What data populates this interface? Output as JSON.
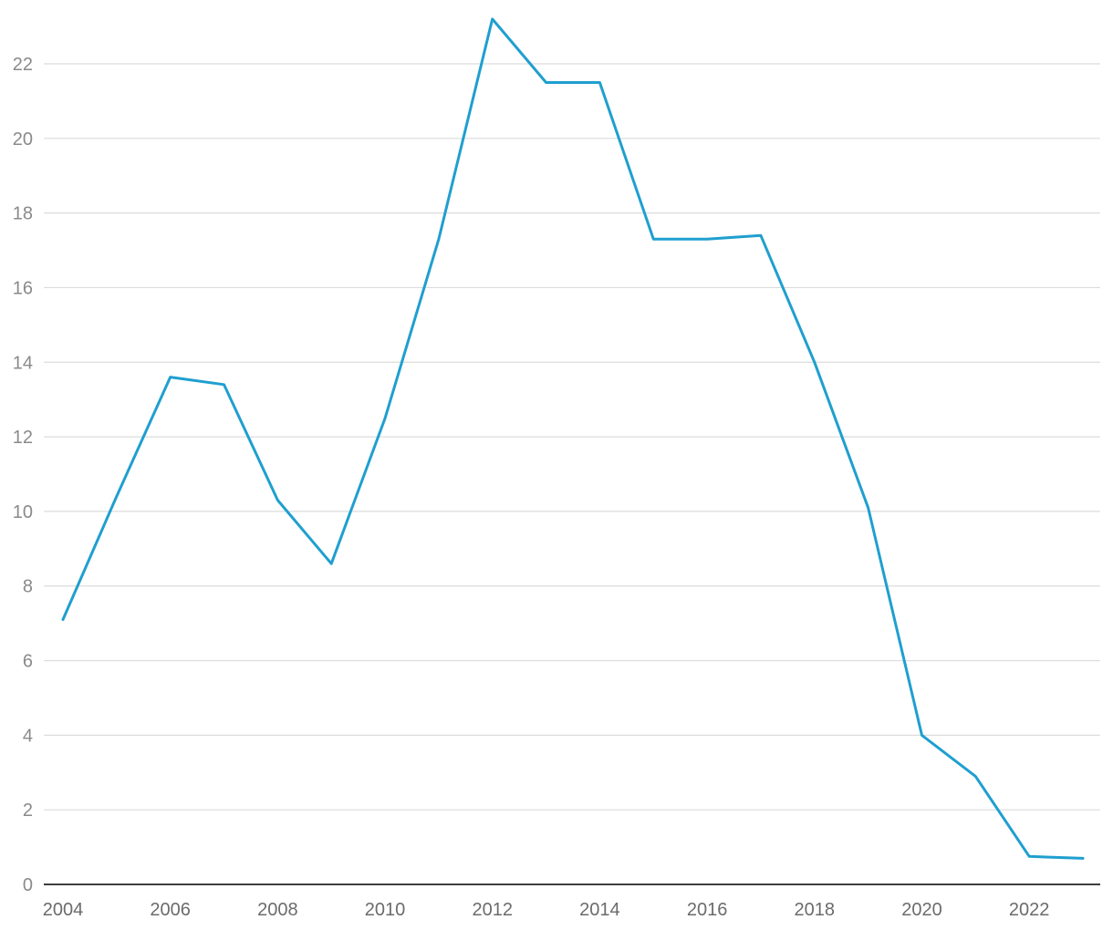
{
  "chart_data": {
    "type": "line",
    "title": "",
    "xlabel": "",
    "ylabel": "",
    "x": [
      2004,
      2005,
      2006,
      2007,
      2008,
      2009,
      2010,
      2011,
      2012,
      2013,
      2014,
      2015,
      2016,
      2017,
      2018,
      2019,
      2020,
      2021,
      2022,
      2023
    ],
    "series": [
      {
        "values": [
          7.1,
          10.4,
          13.6,
          13.4,
          10.3,
          8.6,
          12.5,
          17.3,
          23.2,
          21.5,
          21.5,
          17.3,
          17.3,
          17.4,
          14.0,
          10.1,
          4.0,
          2.9,
          0.75,
          0.7
        ],
        "color": "#1f9fcf"
      }
    ],
    "xticks": [
      "2004",
      "2006",
      "2008",
      "2010",
      "2012",
      "2014",
      "2016",
      "2018",
      "2020",
      "2022"
    ],
    "yticks": [
      "0",
      "2",
      "4",
      "6",
      "8",
      "10",
      "12",
      "14",
      "16",
      "18",
      "20",
      "22"
    ],
    "xlim": [
      2004,
      2023
    ],
    "ylim": [
      0,
      23.5
    ],
    "grid": "horizontal",
    "legend": "none"
  }
}
